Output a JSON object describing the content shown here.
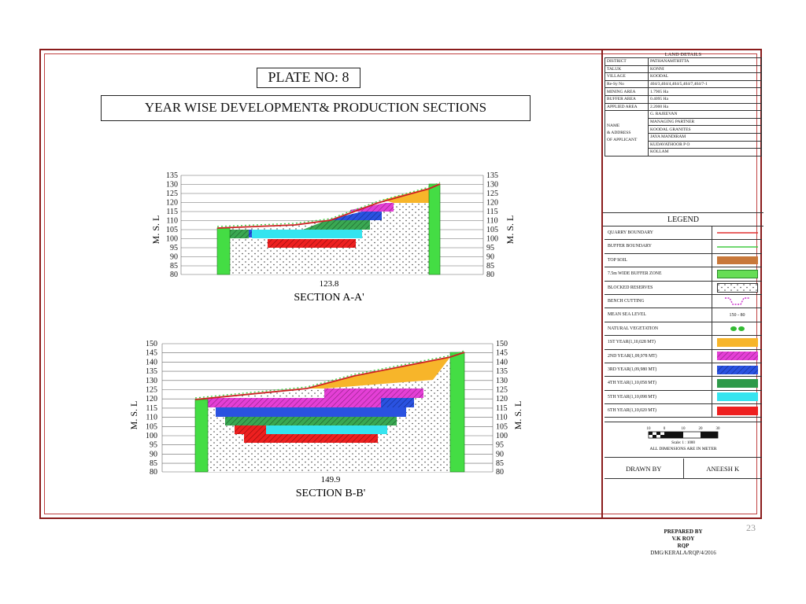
{
  "plate_no": "PLATE NO: 8",
  "title": "YEAR WISE DEVELOPMENT& PRODUCTION SECTIONS",
  "section_a": {
    "label": "SECTION A-A'",
    "length": "123.8",
    "y_axis_label": "M. S. L",
    "ticks": [
      "135",
      "130",
      "125",
      "120",
      "115",
      "110",
      "105",
      "100",
      "95",
      "90",
      "85",
      "80"
    ]
  },
  "section_b": {
    "label": "SECTION B-B'",
    "length": "149.9",
    "y_axis_label": "M. S. L",
    "ticks": [
      "150",
      "145",
      "140",
      "135",
      "130",
      "125",
      "120",
      "115",
      "110",
      "105",
      "100",
      "95",
      "90",
      "85",
      "80"
    ]
  },
  "land_details": {
    "title": "LAND DETAILS",
    "rows": [
      {
        "key": "DISTRICT",
        "value": "PATHANAMTHITTA"
      },
      {
        "key": "TALUK",
        "value": "KONNI"
      },
      {
        "key": "VILLAGE",
        "value": "KOODAL"
      },
      {
        "key": "Re-Sy No",
        "value": "404/3,404/4,404/5,404/7,404/7-1"
      },
      {
        "key": "MINING AREA",
        "value": "1.7905 Ha"
      },
      {
        "key": "BUFFER AREA",
        "value": "0.4095 Ha"
      },
      {
        "key": "APPLIED AREA",
        "value": "2.2000 Ha"
      }
    ],
    "applicant_key": [
      "NAME",
      "& ADDRESS",
      "OF APPLICANT"
    ],
    "applicant_lines": [
      "G. RAJEEVAN",
      "MANAGING PARTNER",
      "KOODAL GRANITES",
      "JAYA MANDIRAM",
      "KUDAVATHOOR P O",
      "KOLLAM"
    ]
  },
  "legend": {
    "title": "LEGEND",
    "items": [
      {
        "label": "QUARRY BOUNDARY",
        "kind": "line",
        "color": "#e03030"
      },
      {
        "label": "BUFFER BOUNDARY",
        "kind": "line",
        "color": "#44cc44"
      },
      {
        "label": "TOP SOIL",
        "kind": "fill",
        "color": "#c8783a"
      },
      {
        "label": "7.5m WIDE BUFFER ZONE",
        "kind": "buffer",
        "color": "#66dd55"
      },
      {
        "label": "BLOCKED RESERVES",
        "kind": "dots",
        "color": "#ffffff"
      },
      {
        "label": "BENCH CUTTING",
        "kind": "bench",
        "color": "#cc33cc"
      },
      {
        "label": "MEAN SEA LEVEL",
        "kind": "text",
        "value": "150  -  80"
      },
      {
        "label": "NATURAL  VEGETATION",
        "kind": "leaf",
        "color": "#33bb33"
      },
      {
        "label": "1ST YEAR(1,10,028 MT)",
        "kind": "fill",
        "color": "#f7b52a"
      },
      {
        "label": "2ND YEAR(1,09,978 MT)",
        "kind": "hatch",
        "color": "#e43fd6"
      },
      {
        "label": "3RD YEAR(1,09,980 MT)",
        "kind": "hatch",
        "color": "#2a52e0"
      },
      {
        "label": "4TH YEAR(1,10,058 MT)",
        "kind": "fill",
        "color": "#2e9a4a"
      },
      {
        "label": "5TH YEAR(1,10,098 MT)",
        "kind": "fill",
        "color": "#35e4ef"
      },
      {
        "label": "6TH YEAR(1,10,020 MT)",
        "kind": "fill",
        "color": "#ee2020"
      }
    ]
  },
  "scale": {
    "ticks": [
      "10",
      "0",
      "10",
      "20",
      "30"
    ],
    "text": "Scale: 1 : 1000",
    "note": "ALL DIMENSIONS ARE  IN METER"
  },
  "drawn_by": {
    "label": "DRAWN BY",
    "name": "ANEESH K"
  },
  "prepared_by": {
    "lines": [
      "PREPARED BY",
      "V.K ROY",
      "RQP",
      "DMG/KERALA/RQP/4/2016"
    ]
  },
  "page_number": "23"
}
